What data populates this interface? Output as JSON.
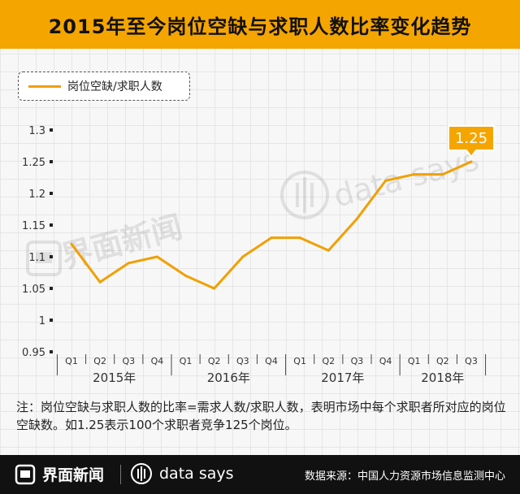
{
  "title": "2015年至今岗位空缺与求职人数比率变化趋势",
  "colors": {
    "accent": "#f5a500",
    "line": "#f0a000",
    "footer": "#111111"
  },
  "chart_data": {
    "type": "line",
    "title": "2015年至今岗位空缺与求职人数比率变化趋势",
    "series": [
      {
        "name": "岗位空缺/求职人数",
        "values": [
          1.12,
          1.06,
          1.09,
          1.1,
          1.07,
          1.05,
          1.1,
          1.13,
          1.13,
          1.11,
          1.16,
          1.22,
          1.23,
          1.23,
          1.25
        ]
      }
    ],
    "quarters": [
      "Q1",
      "Q2",
      "Q3",
      "Q4",
      "Q1",
      "Q2",
      "Q3",
      "Q4",
      "Q1",
      "Q2",
      "Q3",
      "Q4",
      "Q1",
      "Q2",
      "Q3"
    ],
    "years": [
      {
        "label": "2015年",
        "start": 0,
        "end": 3
      },
      {
        "label": "2016年",
        "start": 4,
        "end": 7
      },
      {
        "label": "2017年",
        "start": 8,
        "end": 11
      },
      {
        "label": "2018年",
        "start": 12,
        "end": 14
      }
    ],
    "yticks": [
      "1.3",
      "1.25",
      "1.2",
      "1.15",
      "1.1",
      "1.05",
      "1",
      "0.95"
    ],
    "ylim": [
      0.95,
      1.3
    ],
    "annotation": "1.25",
    "grid": true,
    "legend": "top-left"
  },
  "legend_label": "岗位空缺/求职人数",
  "note": "注：岗位空缺与求职人数的比率=需求人数/求职人数，表明市场中每个求职者所对应的岗位空缺数。如1.25表示100个求职者竞争125个岗位。",
  "footer": {
    "brand_jiemian": "界面新闻",
    "brand_datasays": "data says",
    "source": "数据来源：中国人力资源市场信息监测中心"
  },
  "watermark": {
    "jiemian": "界面新闻",
    "datasays": "data says"
  }
}
